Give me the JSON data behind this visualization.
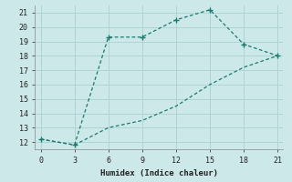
{
  "xlabel": "Humidex (Indice chaleur)",
  "line1_x": [
    0,
    3,
    6,
    9,
    12,
    15,
    18,
    21
  ],
  "line1_y": [
    12.2,
    11.8,
    19.3,
    19.3,
    20.5,
    21.2,
    18.8,
    18.0
  ],
  "line2_x": [
    0,
    3,
    6,
    9,
    12,
    15,
    18,
    21
  ],
  "line2_y": [
    12.2,
    11.8,
    13.0,
    13.5,
    14.5,
    16.0,
    17.2,
    18.0
  ],
  "color": "#1a7a6e",
  "bg_color": "#cce8e8",
  "grid_color": "#b0d4d4",
  "xlim": [
    -0.5,
    21.5
  ],
  "ylim": [
    11.5,
    21.5
  ],
  "xticks": [
    0,
    3,
    6,
    9,
    12,
    15,
    18,
    21
  ],
  "yticks": [
    12,
    13,
    14,
    15,
    16,
    17,
    18,
    19,
    20,
    21
  ],
  "marker_points_line1": [
    0,
    3,
    6,
    9,
    12,
    15,
    18,
    21
  ],
  "marker_y_line1": [
    12.2,
    11.8,
    19.3,
    19.3,
    20.5,
    21.2,
    18.8,
    18.0
  ]
}
